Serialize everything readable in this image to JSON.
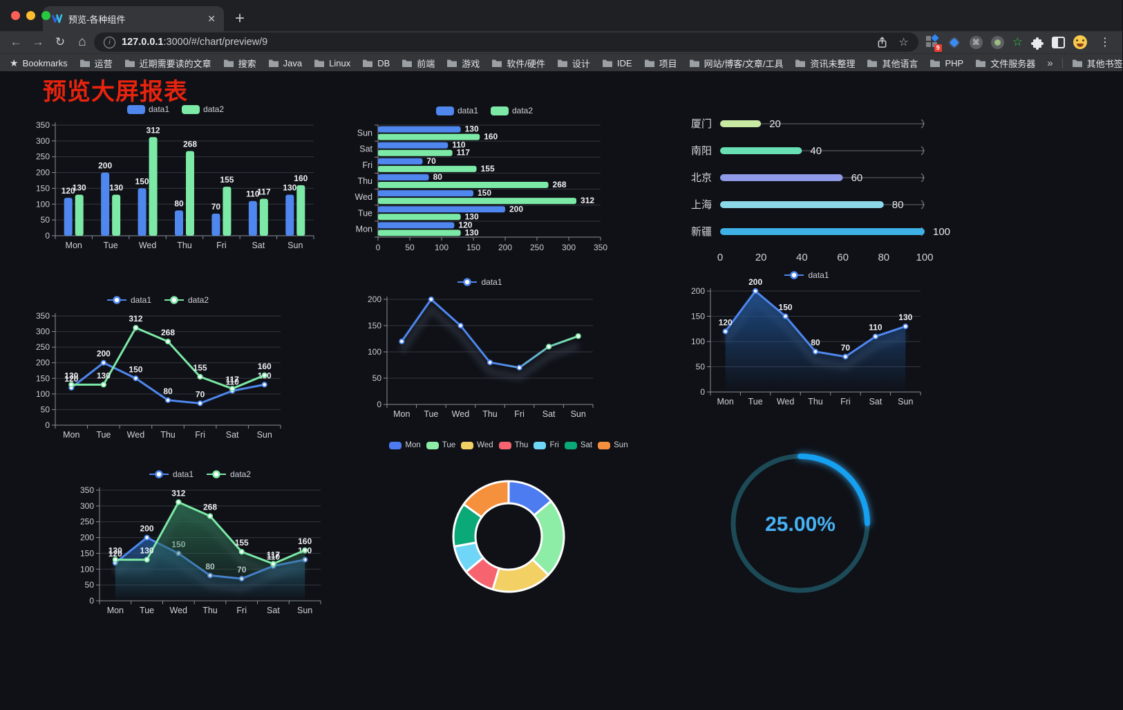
{
  "browser": {
    "traffic_lights": [
      "#ff5f57",
      "#febc2e",
      "#28c840"
    ],
    "tab": {
      "title": "预览-各种组件",
      "close_glyph": "✕",
      "new_tab_glyph": "+"
    },
    "nav": {
      "back_glyph": "←",
      "forward_glyph": "→",
      "reload_glyph": "↻",
      "home_glyph": "⌂"
    },
    "url": {
      "host": "127.0.0.1",
      "rest": ":3000/#/chart/preview/9"
    },
    "actions": {
      "bookmark_star_glyph": "☆",
      "extension_badge": "9",
      "menu_glyph": "⋮"
    },
    "bookmarks_label": "Bookmarks",
    "bookmarks": [
      "运营",
      "近期需要读的文章",
      "搜索",
      "Java",
      "Linux",
      "DB",
      "前端",
      "游戏",
      "软件/硬件",
      "设计",
      "IDE",
      "项目",
      "网站/博客/文章/工具",
      "资讯未整理",
      "其他语言",
      "PHP",
      "文件服务器"
    ],
    "bookmarks_overflow_glyph": "»",
    "other_bookmarks_label": "其他书签",
    "bookmarks_star_glyph": "★"
  },
  "page": {
    "title": "预览大屏报表",
    "title_color": "#e8230e",
    "background": "#0f1117"
  },
  "chart_data": [
    {
      "id": "bar-vertical",
      "type": "bar",
      "categories": [
        "Mon",
        "Tue",
        "Wed",
        "Thu",
        "Fri",
        "Sat",
        "Sun"
      ],
      "series": [
        {
          "name": "data1",
          "color": "#4f87ee",
          "values": [
            120,
            200,
            150,
            80,
            70,
            110,
            130
          ]
        },
        {
          "name": "data2",
          "color": "#7de9a6",
          "values": [
            130,
            130,
            312,
            268,
            155,
            117,
            160
          ]
        }
      ],
      "ylim": [
        0,
        350
      ],
      "ytick_step": 50,
      "show_labels": true,
      "legend": "roundRect",
      "grid": true
    },
    {
      "id": "bar-horizontal",
      "type": "hbar",
      "categories": [
        "Mon",
        "Tue",
        "Wed",
        "Thu",
        "Fri",
        "Sat",
        "Sun"
      ],
      "display_order": "bottom-to-top",
      "series": [
        {
          "name": "data1",
          "color": "#4f87ee",
          "values": [
            120,
            200,
            150,
            80,
            70,
            110,
            130
          ]
        },
        {
          "name": "data2",
          "color": "#7de9a6",
          "values": [
            130,
            130,
            312,
            268,
            155,
            117,
            160
          ]
        }
      ],
      "xlim": [
        0,
        350
      ],
      "xtick_step": 50,
      "show_labels": true,
      "legend": "roundRect"
    },
    {
      "id": "progress-list",
      "type": "progress",
      "max": 100,
      "ticks": [
        0,
        20,
        40,
        60,
        80,
        100
      ],
      "items": [
        {
          "label": "厦门",
          "value": 20,
          "color": "#c8e9a1"
        },
        {
          "label": "南阳",
          "value": 40,
          "color": "#69dfb4"
        },
        {
          "label": "北京",
          "value": 60,
          "color": "#8f9ae8"
        },
        {
          "label": "上海",
          "value": 80,
          "color": "#8bd9e9"
        },
        {
          "label": "新疆",
          "value": 100,
          "color": "#3eb2e6"
        }
      ]
    },
    {
      "id": "line-two-series",
      "type": "line",
      "categories": [
        "Mon",
        "Tue",
        "Wed",
        "Thu",
        "Fri",
        "Sat",
        "Sun"
      ],
      "series": [
        {
          "name": "data1",
          "color": "#4f87ee",
          "values": [
            120,
            200,
            150,
            80,
            70,
            110,
            130
          ]
        },
        {
          "name": "data2",
          "color": "#7de9a6",
          "values": [
            130,
            130,
            312,
            268,
            155,
            117,
            160
          ]
        }
      ],
      "ylim": [
        0,
        350
      ],
      "ytick_step": 50,
      "show_labels": true,
      "legend": "circle"
    },
    {
      "id": "line-gradient",
      "type": "line",
      "categories": [
        "Mon",
        "Tue",
        "Wed",
        "Thu",
        "Fri",
        "Sat",
        "Sun"
      ],
      "series": [
        {
          "name": "data1",
          "gradient": [
            "#4f87ee",
            "#7de9a6"
          ],
          "values": [
            120,
            200,
            150,
            80,
            70,
            110,
            130
          ]
        }
      ],
      "ylim": [
        0,
        200
      ],
      "ytick_step": 50,
      "show_labels": false,
      "legend": "circle",
      "shadow": true
    },
    {
      "id": "area-single",
      "type": "line",
      "categories": [
        "Mon",
        "Tue",
        "Wed",
        "Thu",
        "Fri",
        "Sat",
        "Sun"
      ],
      "series": [
        {
          "name": "data1",
          "color": "#4f87ee",
          "fill": [
            "rgba(32,83,148,0.85)",
            "rgba(32,83,148,0)"
          ],
          "values": [
            120,
            200,
            150,
            80,
            70,
            110,
            130
          ]
        }
      ],
      "ylim": [
        0,
        200
      ],
      "ytick_step": 50,
      "show_labels": true,
      "legend": "circle",
      "shadow": true
    },
    {
      "id": "area-two",
      "type": "line",
      "categories": [
        "Mon",
        "Tue",
        "Wed",
        "Thu",
        "Fri",
        "Sat",
        "Sun"
      ],
      "series": [
        {
          "name": "data1",
          "color": "#4f87ee",
          "fill": [
            "rgba(32,83,148,0.85)",
            "rgba(32,83,148,0)"
          ],
          "values": [
            120,
            200,
            150,
            80,
            70,
            110,
            130
          ]
        },
        {
          "name": "data2",
          "color": "#7de9a6",
          "fill": [
            "rgba(42,105,78,0.9)",
            "rgba(42,105,78,0)"
          ],
          "values": [
            130,
            130,
            312,
            268,
            155,
            117,
            160
          ]
        }
      ],
      "ylim": [
        0,
        350
      ],
      "ytick_step": 50,
      "show_labels": true,
      "legend": "circle",
      "shadow": true
    },
    {
      "id": "donut",
      "type": "pie",
      "inner_radius_ratio": 0.6,
      "legend": "roundRect",
      "items": [
        {
          "label": "Mon",
          "value": 120,
          "color": "#4d7bf0"
        },
        {
          "label": "Tue",
          "value": 200,
          "color": "#8deda6"
        },
        {
          "label": "Wed",
          "value": 150,
          "color": "#f2d064"
        },
        {
          "label": "Thu",
          "value": 80,
          "color": "#f5646f"
        },
        {
          "label": "Fri",
          "value": 70,
          "color": "#70d6f7"
        },
        {
          "label": "Sat",
          "value": 110,
          "color": "#0ba878"
        },
        {
          "label": "Sun",
          "value": 130,
          "color": "#f5913d"
        }
      ]
    },
    {
      "id": "gauge",
      "type": "gauge",
      "value_text": "25.00%",
      "percent": 25,
      "color": "#18a0f2",
      "track_color": "#1d4a57",
      "text_color": "#47b1f4"
    }
  ]
}
